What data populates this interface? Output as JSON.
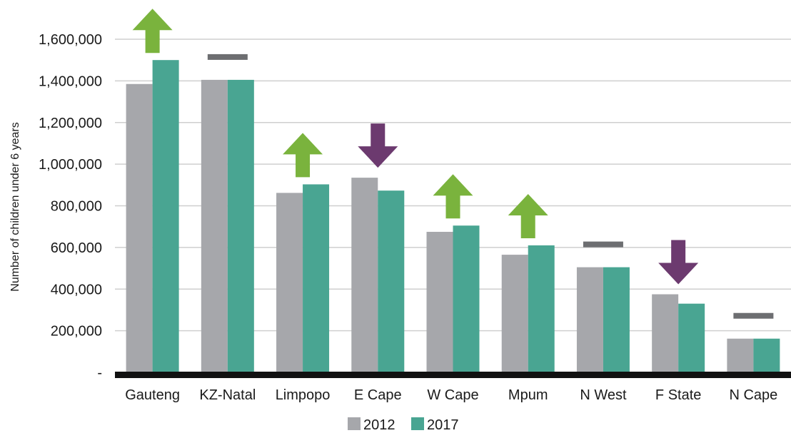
{
  "chart_data": {
    "type": "bar",
    "title": "",
    "xlabel": "",
    "ylabel": "Number of children under 6 years",
    "ylim": [
      0,
      1600000
    ],
    "yticks": [
      0,
      200000,
      400000,
      600000,
      800000,
      1000000,
      1200000,
      1400000,
      1600000
    ],
    "ytick_labels": [
      "-",
      "200,000",
      "400,000",
      "600,000",
      "800,000",
      "1,000,000",
      "1,200,000",
      "1,400,000",
      "1,600,000"
    ],
    "grid": "horizontal",
    "legend_position": "bottom-center",
    "categories": [
      "Gauteng",
      "KZ-Natal",
      "Limpopo",
      "E Cape",
      "W Cape",
      "Mpum",
      "N West",
      "F State",
      "N Cape"
    ],
    "series": [
      {
        "name": "2012",
        "color": "#a6a7ab",
        "values": [
          1385000,
          1405000,
          862000,
          935000,
          675000,
          565000,
          505000,
          375000,
          162000
        ]
      },
      {
        "name": "2017",
        "color": "#49a592",
        "values": [
          1500000,
          1405000,
          903000,
          873000,
          705000,
          610000,
          505000,
          330000,
          162000
        ]
      }
    ],
    "annotations": [
      {
        "category": "Gauteng",
        "trend": "up",
        "icon": "up-arrow-icon",
        "color": "#7ab33d"
      },
      {
        "category": "KZ-Natal",
        "trend": "same",
        "icon": "dash-icon",
        "color": "#6d6e71"
      },
      {
        "category": "Limpopo",
        "trend": "up",
        "icon": "up-arrow-icon",
        "color": "#7ab33d"
      },
      {
        "category": "E Cape",
        "trend": "down",
        "icon": "down-arrow-icon",
        "color": "#6c3a6f"
      },
      {
        "category": "W Cape",
        "trend": "up",
        "icon": "up-arrow-icon",
        "color": "#7ab33d"
      },
      {
        "category": "Mpum",
        "trend": "up",
        "icon": "up-arrow-icon",
        "color": "#7ab33d"
      },
      {
        "category": "N West",
        "trend": "same",
        "icon": "dash-icon",
        "color": "#6d6e71"
      },
      {
        "category": "F State",
        "trend": "down",
        "icon": "down-arrow-icon",
        "color": "#6c3a6f"
      },
      {
        "category": "N Cape",
        "trend": "same",
        "icon": "dash-icon",
        "color": "#6d6e71"
      }
    ]
  }
}
